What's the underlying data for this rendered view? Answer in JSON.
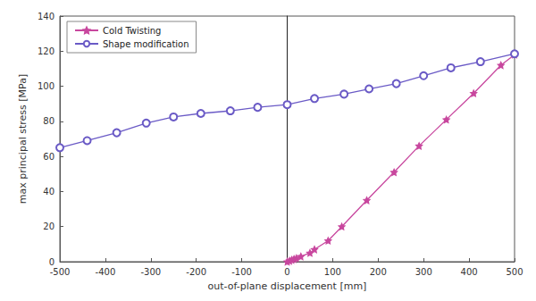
{
  "chart_data": {
    "type": "line",
    "x_label": "out-of-plane displacement [mm]",
    "y_label": "max principal stress [MPa]",
    "xlim": [
      -500,
      500
    ],
    "xticks": [
      -500,
      -400,
      -300,
      -200,
      -100,
      0,
      100,
      200,
      300,
      400,
      500
    ],
    "ylim": [
      0,
      140
    ],
    "yticks": [
      0,
      20,
      40,
      60,
      80,
      100,
      120,
      140
    ],
    "grid": false,
    "legend": "upper left",
    "series": [
      {
        "name": "Cold Twisting",
        "color": "#c8479e",
        "marker": "star",
        "line_style": "solid",
        "x": [
          0,
          5,
          10,
          15,
          20,
          30,
          50,
          60,
          90,
          120,
          175,
          235,
          290,
          350,
          410,
          470,
          500
        ],
        "values": [
          0,
          0.5,
          1,
          1.5,
          2,
          3,
          5,
          7,
          12,
          20,
          35,
          51,
          66,
          81,
          96,
          112,
          118
        ]
      },
      {
        "name": "Shape modification",
        "color": "#6a5ac6",
        "marker": "circle",
        "line_style": "solid",
        "x": [
          -500,
          -440,
          -375,
          -310,
          -250,
          -190,
          -125,
          -65,
          0,
          60,
          125,
          180,
          240,
          300,
          360,
          425,
          500
        ],
        "values": [
          65,
          69,
          73.5,
          79,
          82.5,
          84.5,
          86,
          88,
          89.5,
          93,
          95.5,
          98.5,
          101.5,
          106,
          110.5,
          114,
          118.5
        ]
      }
    ]
  }
}
